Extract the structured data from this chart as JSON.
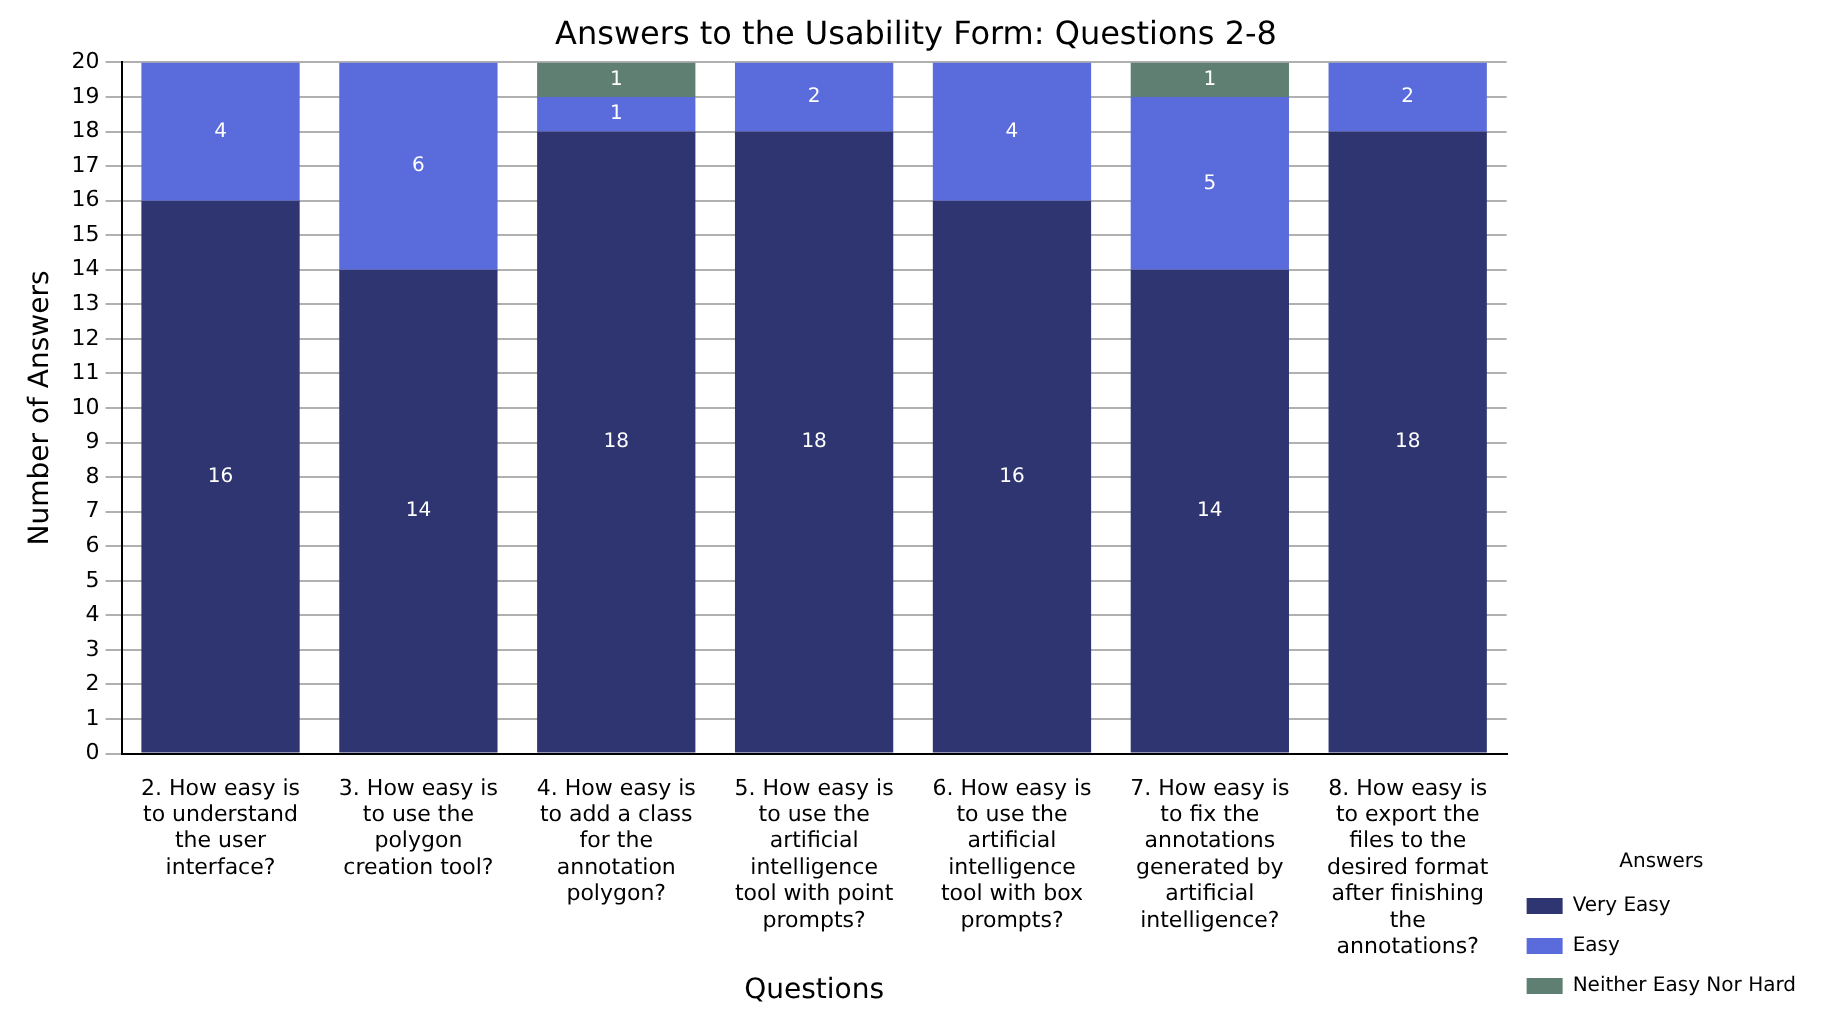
{
  "chart_data": {
    "type": "bar",
    "title": "Answers to the Usability Form: Questions 2-8",
    "xlabel": "Questions",
    "ylabel": "Number of Answers",
    "legend_title": "Answers",
    "categories": [
      "2. How easy is to understand the user interface?",
      "3. How easy is to use the polygon creation tool?",
      "4. How easy is to add a class for the annotation polygon?",
      "5. How easy is to use the artificial intelligence tool with point prompts?",
      "6. How easy is to use the artificial intelligence tool with box prompts?",
      "7. How easy is to fix the annotations generated by artificial intelligence?",
      "8. How easy is to export the files to the desired format after finishing the annotations?"
    ],
    "series": [
      {
        "name": "Very Easy",
        "color": "#2e3570",
        "values": [
          16,
          14,
          18,
          18,
          16,
          14,
          18
        ]
      },
      {
        "name": "Easy",
        "color": "#5a6bdc",
        "values": [
          4,
          6,
          1,
          2,
          4,
          5,
          2
        ]
      },
      {
        "name": "Neither Easy Nor Hard",
        "color": "#5f7f72",
        "values": [
          null,
          null,
          1,
          null,
          null,
          1,
          null
        ]
      }
    ],
    "stacked": true,
    "ylim": [
      0,
      20
    ],
    "yticks": [
      0,
      1,
      2,
      3,
      4,
      5,
      6,
      7,
      8,
      9,
      10,
      11,
      12,
      13,
      14,
      15,
      16,
      17,
      18,
      19,
      20
    ],
    "grid": "y",
    "legend": "bottom right",
    "data_labels": true
  }
}
